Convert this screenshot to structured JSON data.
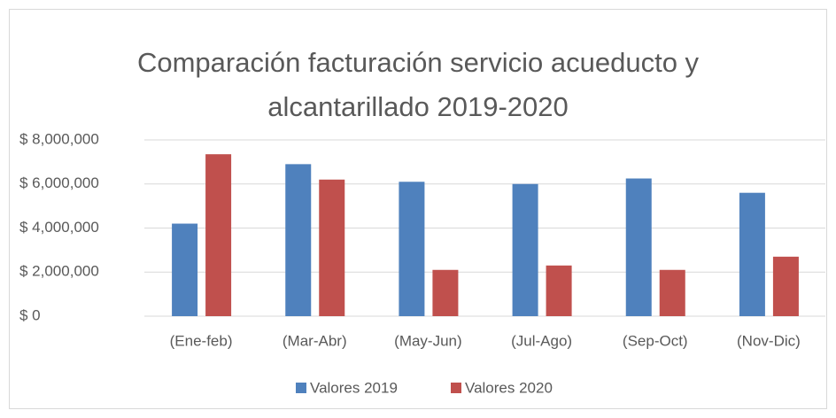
{
  "chart_data": {
    "type": "bar",
    "title": "Comparación facturación servicio acueducto y alcantarillado 2019-2020",
    "categories": [
      "(Ene-feb)",
      "(Mar-Abr)",
      "(May-Jun)",
      "(Jul-Ago)",
      "(Sep-Oct)",
      "(Nov-Dic)"
    ],
    "series": [
      {
        "name": "Valores 2019",
        "color": "#4f81bd",
        "values": [
          4200000,
          6900000,
          6100000,
          6000000,
          6250000,
          5600000
        ]
      },
      {
        "name": "Valores 2020",
        "color": "#c0504d",
        "values": [
          7350000,
          6200000,
          2100000,
          2300000,
          2100000,
          2700000
        ]
      }
    ],
    "ylim": [
      0,
      8000000
    ],
    "yticks": [
      {
        "value": 0,
        "label": "$ 0"
      },
      {
        "value": 2000000,
        "label": "$ 2,000,000"
      },
      {
        "value": 4000000,
        "label": "$ 4,000,000"
      },
      {
        "value": 6000000,
        "label": "$ 6,000,000"
      },
      {
        "value": 8000000,
        "label": "$ 8,000,000"
      }
    ],
    "grid": true,
    "legend": "bottom"
  }
}
